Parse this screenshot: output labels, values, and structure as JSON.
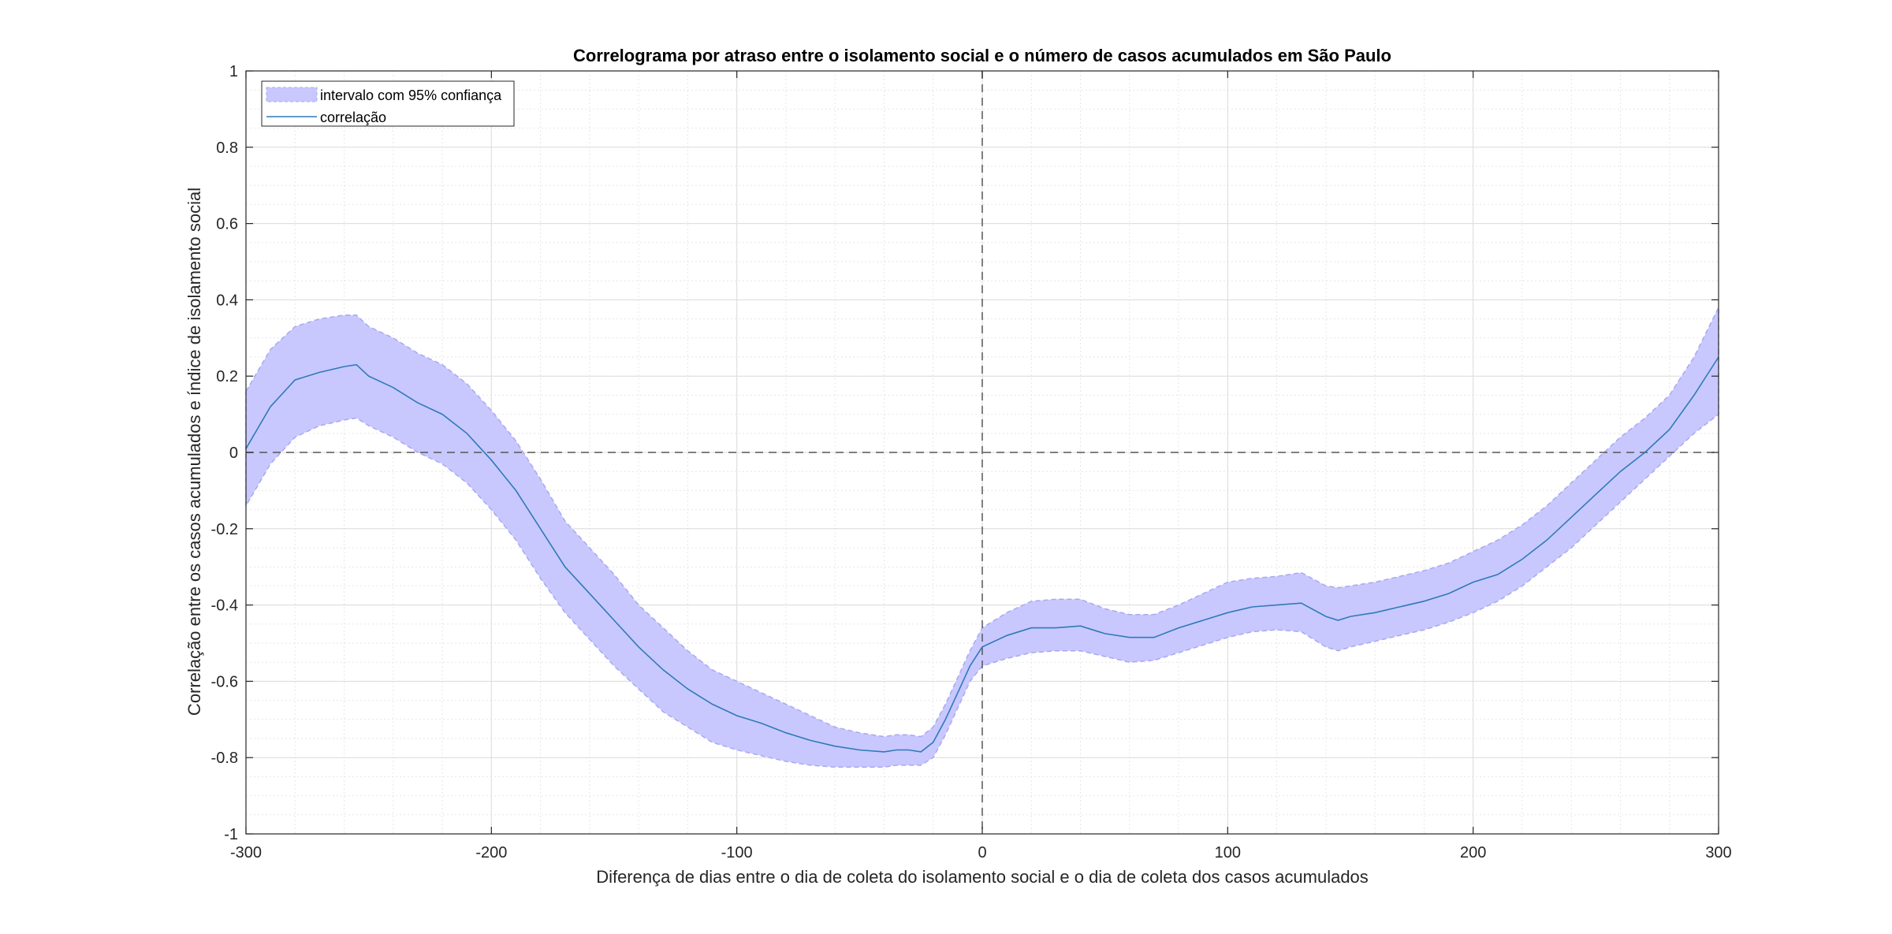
{
  "chart_data": {
    "type": "line",
    "title": "Correlograma por atraso entre o isolamento social e o número de casos acumulados em São Paulo",
    "xlabel": "Diferença de dias entre o dia de coleta do isolamento social e o dia de coleta dos casos acumulados",
    "ylabel": "Correlação entre os casos acumulados e índice de isolamento social",
    "xlim": [
      -300,
      300
    ],
    "ylim": [
      -1,
      1
    ],
    "xticks": [
      -300,
      -200,
      -100,
      0,
      100,
      200,
      300
    ],
    "yticks": [
      -1,
      -0.8,
      -0.6,
      -0.4,
      -0.2,
      0,
      0.2,
      0.4,
      0.6,
      0.8,
      1
    ],
    "xtick_labels": [
      "-300",
      "-200",
      "-100",
      "0",
      "100",
      "200",
      "300"
    ],
    "ytick_labels": [
      "-1",
      "-0.8",
      "-0.6",
      "-0.4",
      "-0.2",
      "0",
      "0.2",
      "0.4",
      "0.6",
      "0.8",
      "1"
    ],
    "grid": true,
    "minor_grid": true,
    "legend_position": "top-left",
    "reference_lines": {
      "x": 0,
      "y": 0
    },
    "colors": {
      "line": "#2f7ab8",
      "band": "#c8c8ff",
      "band_edge": "#a8a8f0",
      "reference": "#555555"
    },
    "series": [
      {
        "name": "correlação",
        "kind": "line",
        "x": [
          -300,
          -290,
          -280,
          -270,
          -260,
          -255,
          -250,
          -240,
          -230,
          -220,
          -210,
          -200,
          -190,
          -180,
          -170,
          -160,
          -150,
          -140,
          -130,
          -120,
          -110,
          -100,
          -90,
          -80,
          -70,
          -60,
          -50,
          -40,
          -35,
          -30,
          -25,
          -20,
          -15,
          -10,
          -5,
          0,
          10,
          20,
          30,
          40,
          50,
          60,
          70,
          80,
          90,
          100,
          110,
          120,
          130,
          140,
          145,
          150,
          160,
          170,
          180,
          190,
          200,
          210,
          220,
          230,
          240,
          250,
          260,
          270,
          280,
          290,
          300
        ],
        "y": [
          0.01,
          0.12,
          0.19,
          0.21,
          0.225,
          0.23,
          0.2,
          0.17,
          0.13,
          0.1,
          0.05,
          -0.02,
          -0.1,
          -0.2,
          -0.3,
          -0.37,
          -0.44,
          -0.51,
          -0.57,
          -0.62,
          -0.66,
          -0.69,
          -0.71,
          -0.735,
          -0.755,
          -0.77,
          -0.78,
          -0.785,
          -0.78,
          -0.78,
          -0.785,
          -0.76,
          -0.7,
          -0.63,
          -0.56,
          -0.51,
          -0.48,
          -0.46,
          -0.46,
          -0.455,
          -0.475,
          -0.485,
          -0.485,
          -0.46,
          -0.44,
          -0.42,
          -0.405,
          -0.4,
          -0.395,
          -0.43,
          -0.44,
          -0.43,
          -0.42,
          -0.405,
          -0.39,
          -0.37,
          -0.34,
          -0.32,
          -0.28,
          -0.23,
          -0.17,
          -0.11,
          -0.05,
          0.0,
          0.06,
          0.15,
          0.25
        ]
      },
      {
        "name": "intervalo com 95% confiança",
        "kind": "band",
        "x": [
          -300,
          -290,
          -280,
          -270,
          -260,
          -255,
          -250,
          -240,
          -230,
          -220,
          -210,
          -200,
          -190,
          -180,
          -170,
          -160,
          -150,
          -140,
          -130,
          -120,
          -110,
          -100,
          -90,
          -80,
          -70,
          -60,
          -50,
          -40,
          -35,
          -30,
          -25,
          -20,
          -15,
          -10,
          -5,
          0,
          10,
          20,
          30,
          40,
          50,
          60,
          70,
          80,
          90,
          100,
          110,
          120,
          130,
          140,
          145,
          150,
          160,
          170,
          180,
          190,
          200,
          210,
          220,
          230,
          240,
          250,
          260,
          270,
          280,
          290,
          300
        ],
        "lower": [
          -0.14,
          -0.03,
          0.04,
          0.07,
          0.085,
          0.09,
          0.07,
          0.04,
          0.0,
          -0.03,
          -0.08,
          -0.15,
          -0.23,
          -0.33,
          -0.42,
          -0.49,
          -0.56,
          -0.62,
          -0.68,
          -0.72,
          -0.76,
          -0.78,
          -0.795,
          -0.81,
          -0.82,
          -0.825,
          -0.825,
          -0.825,
          -0.82,
          -0.82,
          -0.82,
          -0.8,
          -0.74,
          -0.67,
          -0.6,
          -0.56,
          -0.54,
          -0.525,
          -0.52,
          -0.52,
          -0.535,
          -0.55,
          -0.545,
          -0.525,
          -0.505,
          -0.485,
          -0.47,
          -0.465,
          -0.47,
          -0.51,
          -0.52,
          -0.51,
          -0.495,
          -0.48,
          -0.465,
          -0.445,
          -0.42,
          -0.39,
          -0.35,
          -0.3,
          -0.25,
          -0.19,
          -0.13,
          -0.07,
          -0.01,
          0.05,
          0.1
        ],
        "upper": [
          0.16,
          0.27,
          0.33,
          0.35,
          0.36,
          0.36,
          0.33,
          0.3,
          0.26,
          0.23,
          0.18,
          0.11,
          0.03,
          -0.07,
          -0.18,
          -0.25,
          -0.32,
          -0.4,
          -0.46,
          -0.52,
          -0.57,
          -0.6,
          -0.63,
          -0.66,
          -0.69,
          -0.72,
          -0.735,
          -0.745,
          -0.74,
          -0.74,
          -0.745,
          -0.72,
          -0.66,
          -0.59,
          -0.52,
          -0.46,
          -0.42,
          -0.39,
          -0.385,
          -0.385,
          -0.41,
          -0.425,
          -0.425,
          -0.4,
          -0.37,
          -0.34,
          -0.33,
          -0.325,
          -0.315,
          -0.35,
          -0.355,
          -0.35,
          -0.34,
          -0.325,
          -0.31,
          -0.29,
          -0.26,
          -0.23,
          -0.19,
          -0.14,
          -0.08,
          -0.02,
          0.04,
          0.09,
          0.15,
          0.25,
          0.38
        ]
      }
    ]
  }
}
